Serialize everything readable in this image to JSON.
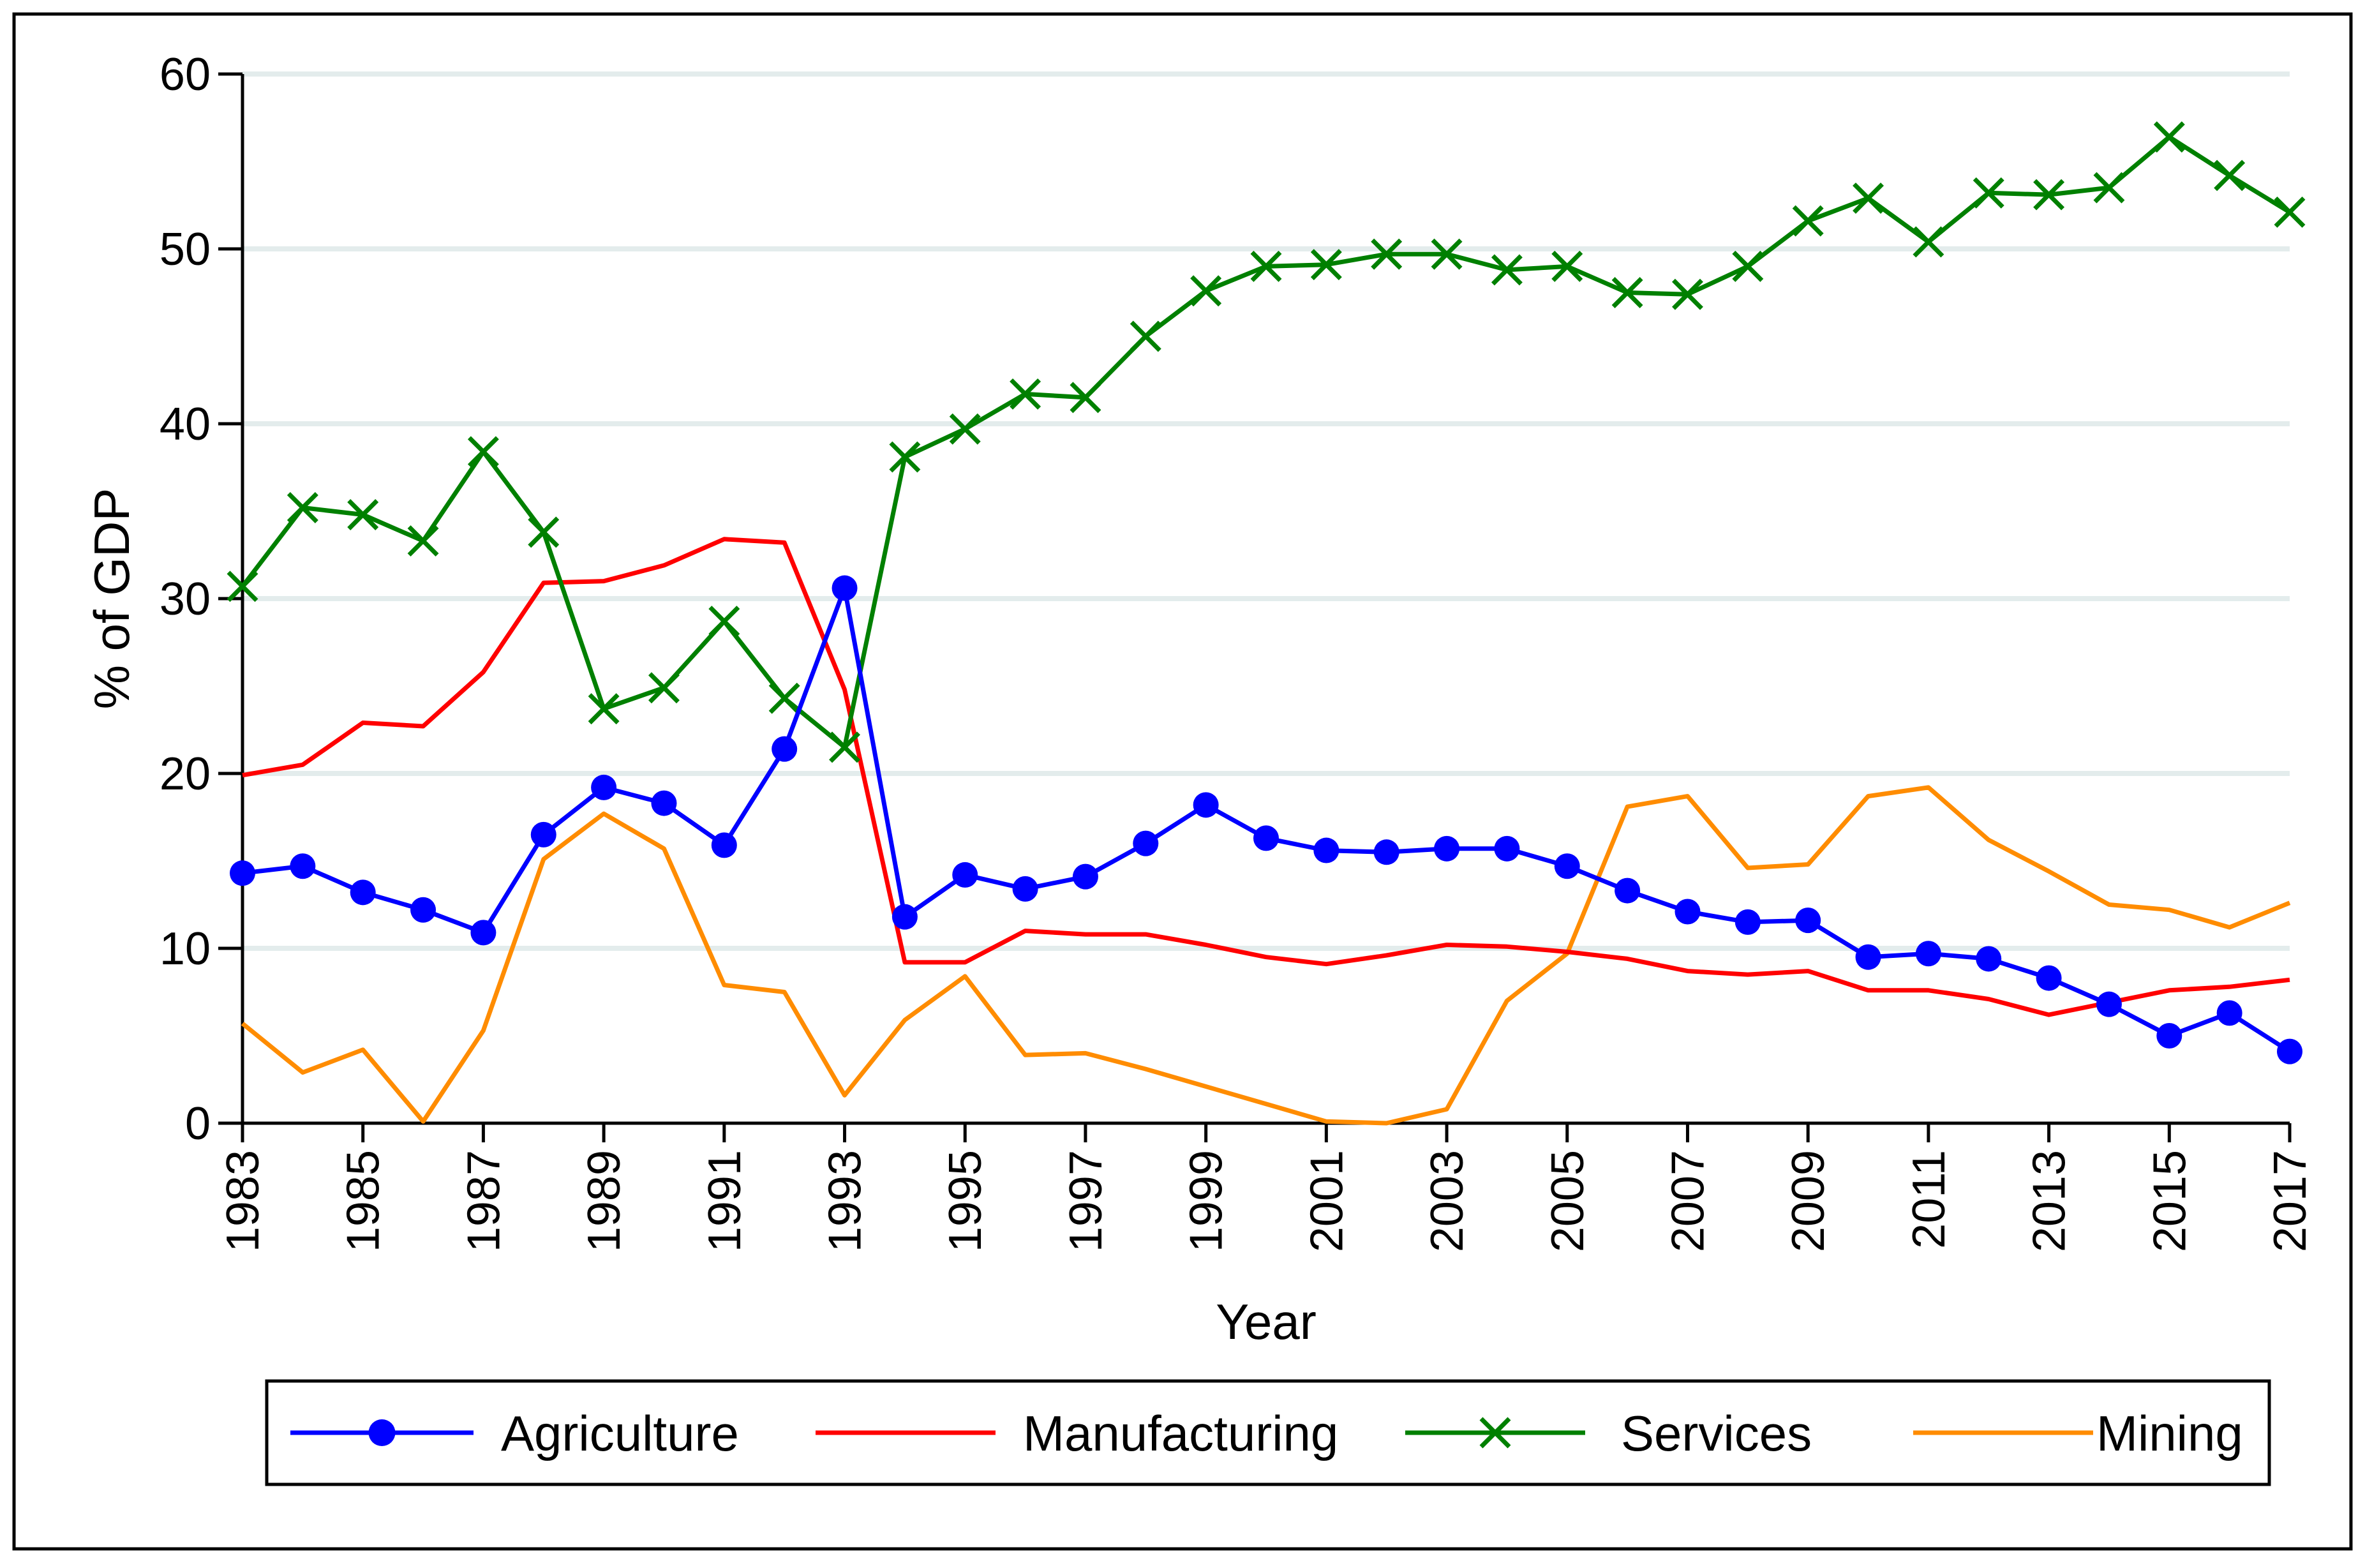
{
  "chart_data": {
    "type": "line",
    "title": "",
    "xlabel": "Year",
    "ylabel": "% of GDP",
    "xlim": [
      1983,
      2017
    ],
    "ylim": [
      0,
      60
    ],
    "yticks": [
      0,
      10,
      20,
      30,
      40,
      50,
      60
    ],
    "xticks": [
      1983,
      1985,
      1987,
      1989,
      1991,
      1993,
      1995,
      1997,
      1999,
      2001,
      2003,
      2005,
      2007,
      2009,
      2011,
      2013,
      2015,
      2017
    ],
    "ytick_labels": [
      "0",
      "10",
      "20",
      "30",
      "40",
      "50",
      "60"
    ],
    "xtick_labels": [
      "1983",
      "1985",
      "1987",
      "1989",
      "1991",
      "1993",
      "1995",
      "1997",
      "1999",
      "2001",
      "2003",
      "2005",
      "2007",
      "2009",
      "2011",
      "2013",
      "2015",
      "2017"
    ],
    "grid": true,
    "legend_position": "bottom",
    "x": [
      1983,
      1984,
      1985,
      1986,
      1987,
      1988,
      1989,
      1990,
      1991,
      1992,
      1993,
      1994,
      1995,
      1996,
      1997,
      1998,
      1999,
      2000,
      2001,
      2002,
      2003,
      2004,
      2005,
      2006,
      2007,
      2008,
      2009,
      2010,
      2011,
      2012,
      2013,
      2014,
      2015,
      2016,
      2017
    ],
    "series": [
      {
        "name": "Agriculture",
        "color": "#0000ff",
        "marker": "circle",
        "values": [
          14.3,
          14.7,
          13.2,
          12.2,
          10.9,
          16.5,
          19.2,
          18.3,
          15.9,
          21.4,
          30.6,
          11.8,
          14.2,
          13.4,
          14.1,
          16.0,
          18.2,
          16.3,
          15.6,
          15.5,
          15.7,
          15.7,
          14.7,
          13.3,
          12.1,
          11.5,
          11.6,
          9.5,
          9.7,
          9.4,
          8.3,
          6.8,
          5.0,
          6.3,
          4.1
        ]
      },
      {
        "name": "Manufacturing",
        "color": "#ff0000",
        "marker": "none",
        "values": [
          19.9,
          20.5,
          22.9,
          22.7,
          25.8,
          30.9,
          31.0,
          31.9,
          33.4,
          33.2,
          24.8,
          9.2,
          9.2,
          11.0,
          10.8,
          10.8,
          10.2,
          9.5,
          9.1,
          9.6,
          10.2,
          10.1,
          9.8,
          9.4,
          8.7,
          8.5,
          8.7,
          7.6,
          7.6,
          7.1,
          6.2,
          6.9,
          7.6,
          7.8,
          8.2
        ]
      },
      {
        "name": "Services",
        "color": "#008000",
        "marker": "x",
        "values": [
          30.7,
          35.2,
          34.8,
          33.3,
          38.4,
          33.8,
          23.7,
          24.9,
          28.7,
          24.3,
          21.5,
          38.1,
          39.7,
          41.7,
          41.5,
          45.0,
          47.6,
          49.0,
          49.1,
          49.7,
          49.7,
          48.8,
          49.0,
          47.5,
          47.4,
          49.0,
          51.6,
          52.9,
          50.4,
          53.2,
          53.1,
          53.5,
          56.4,
          54.2,
          52.1
        ]
      },
      {
        "name": "Mining",
        "color": "#ff8c00",
        "marker": "none",
        "values": [
          5.7,
          2.9,
          4.2,
          0.1,
          5.3,
          15.1,
          17.7,
          15.7,
          7.9,
          7.5,
          1.6,
          5.9,
          8.4,
          3.9,
          4.0,
          3.1,
          2.1,
          1.1,
          0.1,
          0.0,
          0.8,
          7.0,
          9.7,
          18.1,
          18.7,
          14.6,
          14.8,
          18.7,
          19.2,
          16.2,
          14.4,
          12.5,
          12.2,
          11.2,
          12.6
        ]
      }
    ]
  }
}
